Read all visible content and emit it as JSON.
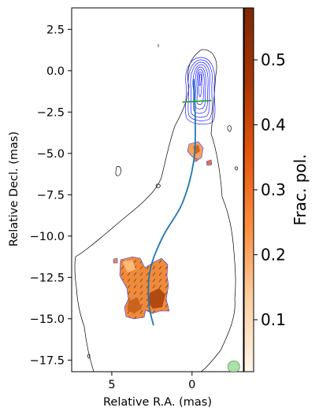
{
  "chart_data": {
    "type": "contour",
    "title": "",
    "xlabel": "Relative R.A. (mas)",
    "ylabel": "Relative Decl. (mas)",
    "colorbar_label": "Frac. pol.",
    "xlim": [
      7.5,
      -3.2
    ],
    "ylim": [
      -18.2,
      3.8
    ],
    "xticks": [
      5,
      0
    ],
    "yticks": [
      2.5,
      0.0,
      -2.5,
      -5.0,
      -7.5,
      -10.0,
      -12.5,
      -15.0,
      -17.5
    ],
    "colorbar_range": [
      0.02,
      0.58
    ],
    "colorbar_ticks": [
      0.1,
      0.2,
      0.3,
      0.4,
      0.5
    ],
    "ridge_line": {
      "color": "#1f77b4",
      "points": [
        [
          -0.1,
          -0.5
        ],
        [
          -0.2,
          -3.0
        ],
        [
          -0.1,
          -5.5
        ],
        [
          0.6,
          -8.0
        ],
        [
          1.8,
          -10.0
        ],
        [
          2.6,
          -12.0
        ],
        [
          2.7,
          -14.0
        ],
        [
          2.4,
          -15.4
        ]
      ]
    },
    "cross_line": {
      "color": "#2ca02c",
      "points": [
        [
          0.6,
          -1.9
        ],
        [
          -1.2,
          -1.8
        ]
      ]
    },
    "beam": {
      "x": -2.6,
      "y": -17.9,
      "color": "#9ed99e"
    },
    "colors": {
      "contour_outer": "#000000",
      "contour_core": "#1a1aff"
    }
  }
}
